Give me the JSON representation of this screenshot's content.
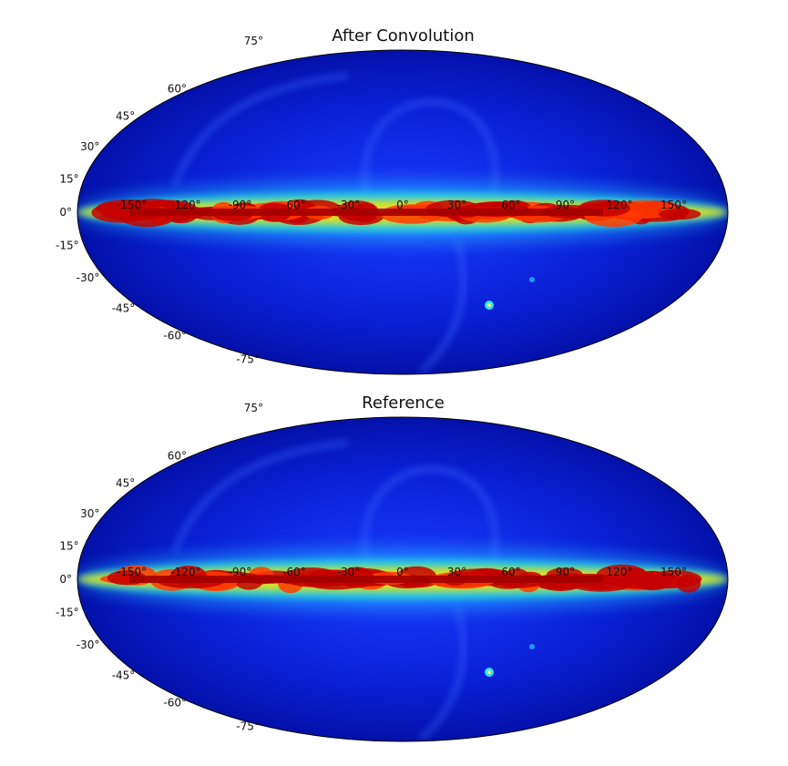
{
  "chart_data": [
    {
      "type": "heatmap",
      "title": "After Convolution",
      "projection": "mollweide",
      "colormap": "jet",
      "grid": false,
      "lat_ticks": [
        "75°",
        "60°",
        "45°",
        "30°",
        "15°",
        "0°",
        "-15°",
        "-30°",
        "-45°",
        "-60°",
        "-75°"
      ],
      "lat_tick_values": [
        75,
        60,
        45,
        30,
        15,
        0,
        -15,
        -30,
        -45,
        -60,
        -75
      ],
      "lon_ticks": [
        "-150°",
        "-120°",
        "-90°",
        "-60°",
        "-30°",
        "0°",
        "30°",
        "60°",
        "90°",
        "120°",
        "150°"
      ],
      "lon_tick_values": [
        -150,
        -120,
        -90,
        -60,
        -30,
        0,
        30,
        60,
        90,
        120,
        150
      ]
    },
    {
      "type": "heatmap",
      "title": "Reference",
      "projection": "mollweide",
      "colormap": "jet",
      "grid": false,
      "lat_ticks": [
        "75°",
        "60°",
        "45°",
        "30°",
        "15°",
        "0°",
        "-15°",
        "-30°",
        "-45°",
        "-60°",
        "-75°"
      ],
      "lat_tick_values": [
        75,
        60,
        45,
        30,
        15,
        0,
        -15,
        -30,
        -45,
        -60,
        -75
      ],
      "lon_ticks": [
        "-150°",
        "-120°",
        "-90°",
        "-60°",
        "-30°",
        "0°",
        "30°",
        "60°",
        "90°",
        "120°",
        "150°"
      ],
      "lon_tick_values": [
        -150,
        -120,
        -90,
        -60,
        -30,
        0,
        30,
        60,
        90,
        120,
        150
      ]
    }
  ]
}
